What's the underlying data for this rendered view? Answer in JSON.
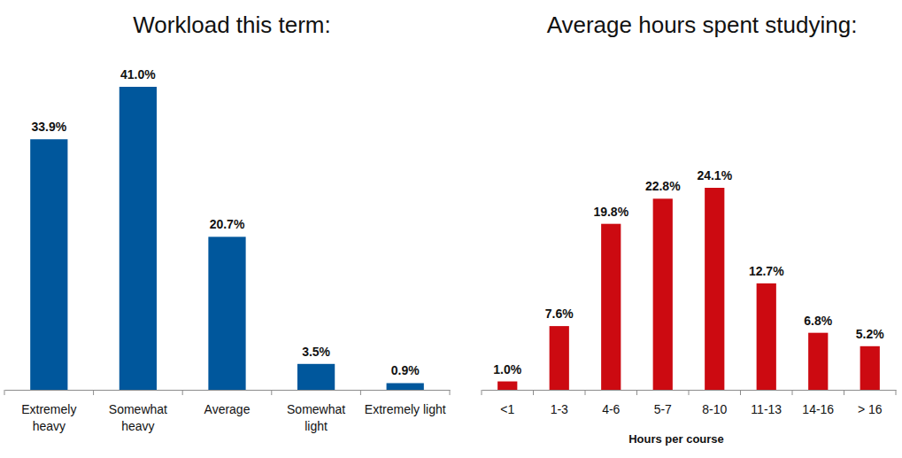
{
  "chart_data": [
    {
      "type": "bar",
      "title": "Workload this term:",
      "categories": [
        "Extremely heavy",
        "Somewhat heavy",
        "Average",
        "Somewhat light",
        "Extremely light"
      ],
      "values": [
        33.9,
        41.0,
        20.7,
        3.5,
        0.9
      ],
      "value_labels": [
        "33.9%",
        "41.0%",
        "20.7%",
        "3.5%",
        "0.9%"
      ],
      "color": "#00579c",
      "data_labels": true,
      "tick_labels": "x"
    },
    {
      "type": "bar",
      "title": "Average hours spent studying:",
      "x_label": "Hours per course",
      "categories": [
        "<1",
        "1-3",
        "4-6",
        "5-7",
        "8-10",
        "11-13",
        "14-16",
        "> 16"
      ],
      "values": [
        1.0,
        7.6,
        19.8,
        22.8,
        24.1,
        12.7,
        6.8,
        5.2
      ],
      "value_labels": [
        "1.0%",
        "7.6%",
        "19.8%",
        "22.8%",
        "24.1%",
        "12.7%",
        "6.8%",
        "5.2%"
      ],
      "color": "#cc0a11",
      "data_labels": true,
      "tick_labels": "x"
    }
  ]
}
